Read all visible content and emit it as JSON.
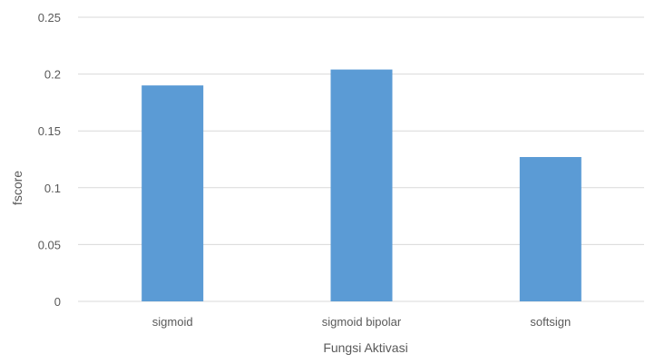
{
  "chart_data": {
    "type": "bar",
    "title": "",
    "xlabel": "Fungsi Aktivasi",
    "ylabel": "fscore",
    "categories": [
      "sigmoid",
      "sigmoid bipolar",
      "softsign"
    ],
    "values": [
      0.19,
      0.204,
      0.127
    ],
    "ylim": [
      0,
      0.25
    ],
    "yticks": [
      "0",
      "0.05",
      "0.1",
      "0.15",
      "0.2",
      "0.25"
    ],
    "grid": true,
    "legend": "none",
    "bar_color": "#5b9bd5",
    "grid_color": "#d9d9d9"
  }
}
